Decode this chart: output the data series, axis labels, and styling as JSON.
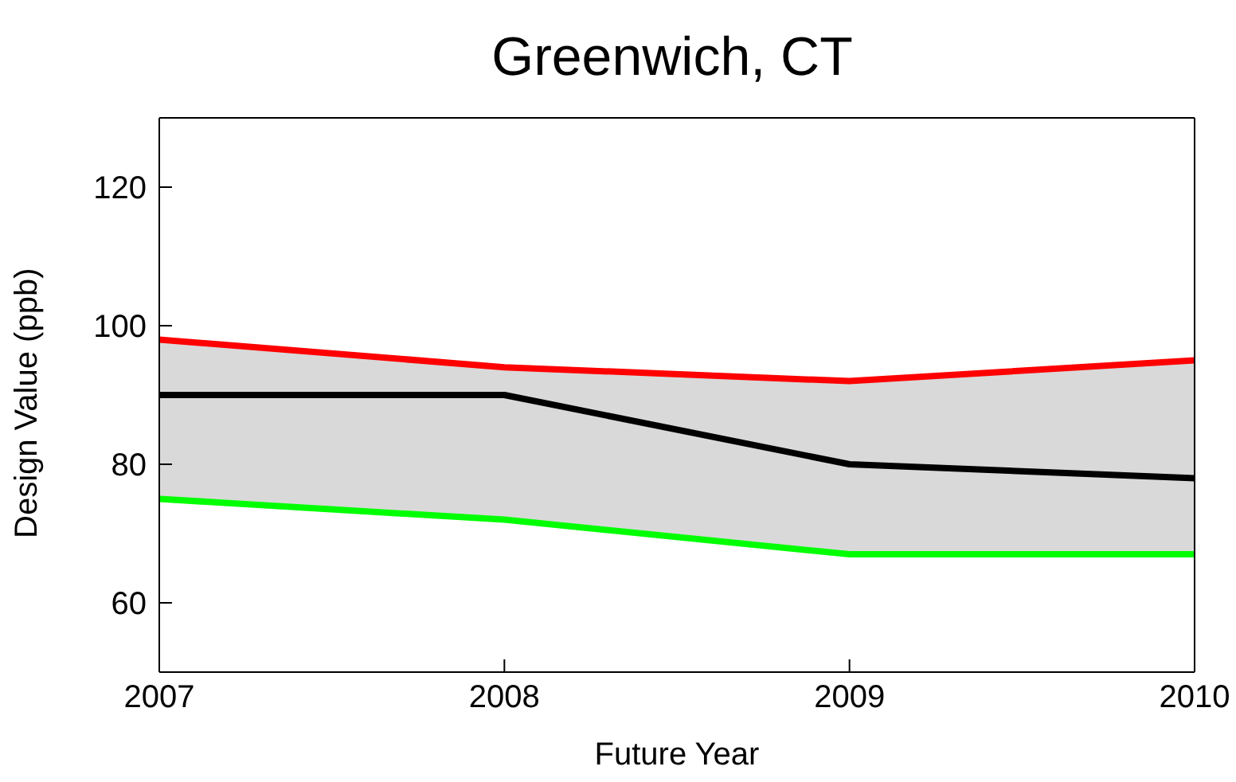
{
  "chart_data": {
    "type": "line",
    "title": "Greenwich, CT",
    "xlabel": "Future Year",
    "ylabel": "Design Value (ppb)",
    "x": [
      2007,
      2008,
      2009,
      2010
    ],
    "series": [
      {
        "color": "#ff0000",
        "values": [
          98,
          94,
          92,
          95
        ]
      },
      {
        "color": "#000000",
        "values": [
          90,
          90,
          80,
          78
        ],
        "lower": [
          75,
          72,
          67,
          67
        ],
        "upper": [
          98,
          94,
          92,
          95
        ]
      },
      {
        "color": "#00ff00",
        "values": [
          75,
          72,
          67,
          67
        ]
      }
    ],
    "xlim": [
      2007,
      2010
    ],
    "xticks": [
      2007,
      2008,
      2009,
      2010
    ],
    "ylim": [
      50,
      130
    ],
    "yticks": [
      60,
      80,
      100,
      120
    ],
    "grid": false,
    "legend": false,
    "marker": "none",
    "line_style": "solid"
  }
}
